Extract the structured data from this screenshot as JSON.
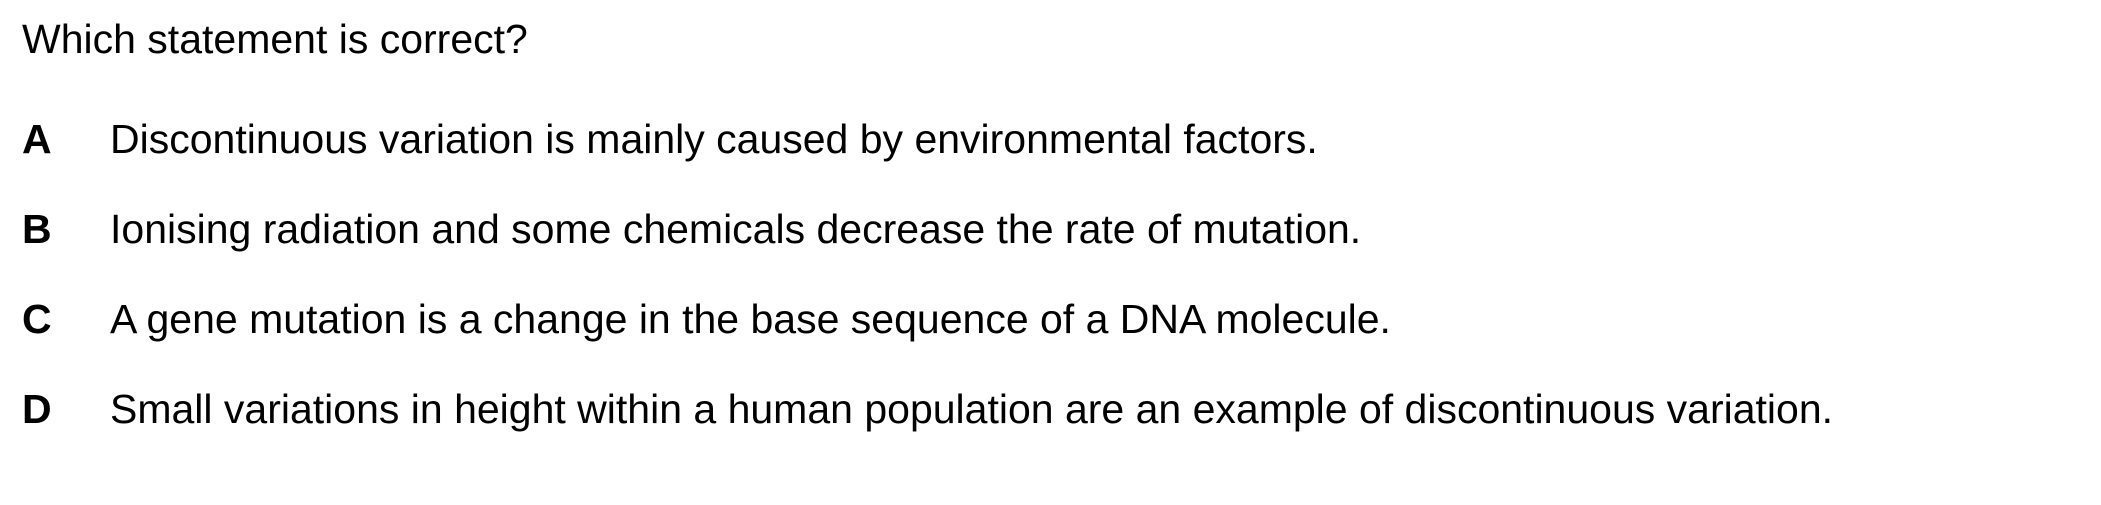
{
  "question": "Which statement is correct?",
  "options": [
    {
      "letter": "A",
      "text": "Discontinuous variation is mainly caused by environmental factors."
    },
    {
      "letter": "B",
      "text": "Ionising radiation and some chemicals decrease the rate of mutation."
    },
    {
      "letter": "C",
      "text": "A gene mutation is a change in the base sequence of a DNA molecule."
    },
    {
      "letter": "D",
      "text": "Small variations in height within a human population are an example of discontinuous variation."
    }
  ]
}
